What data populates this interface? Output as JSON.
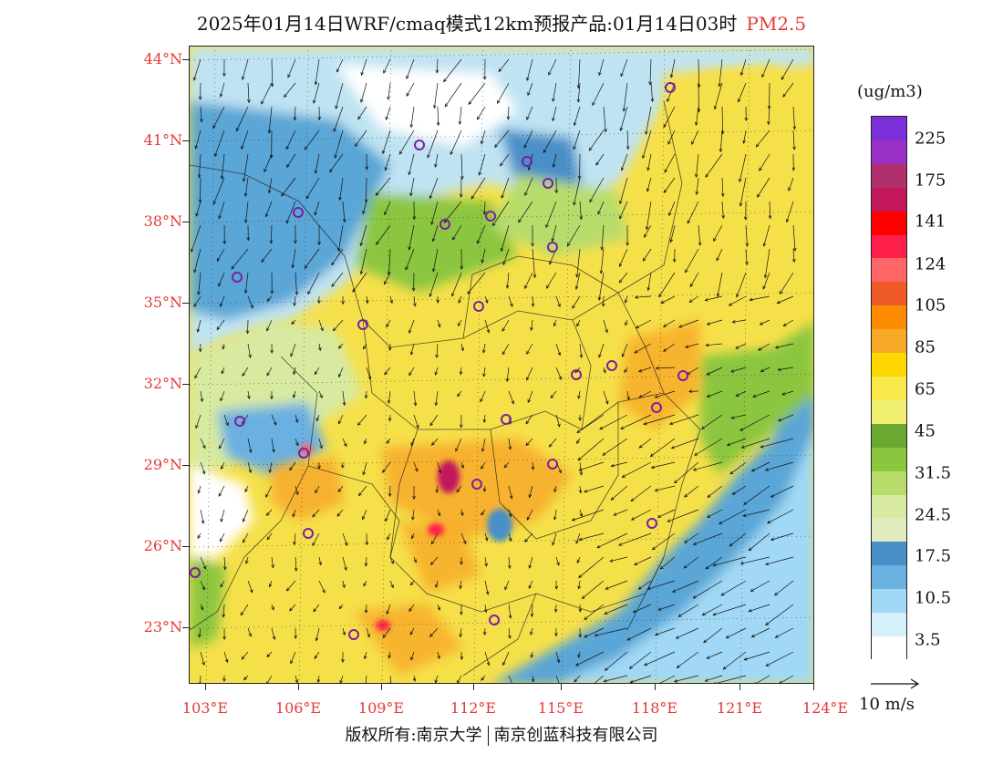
{
  "title": {
    "main": "2025年01月14日WRF/cmaq模式12km预报产品:01月14日03时",
    "pollutant": "PM2.5"
  },
  "map": {
    "lat_labels": [
      "44°N",
      "41°N",
      "38°N",
      "35°N",
      "32°N",
      "29°N",
      "26°N",
      "23°N"
    ],
    "lon_labels": [
      "103°E",
      "106°E",
      "109°E",
      "112°E",
      "115°E",
      "118°E",
      "121°E",
      "124°E"
    ],
    "colors": {
      "background_level": "#f6e04a",
      "clean_north": "#a8d8ee",
      "sea": "#5aa6d6",
      "hotspot": "#c2185b",
      "station_marker": "#7b1fa2",
      "axis_label": "#e53935"
    }
  },
  "legend": {
    "unit": "(ug/m3)",
    "labels": [
      "225",
      "175",
      "141",
      "124",
      "105",
      "85",
      "65",
      "45",
      "31.5",
      "24.5",
      "17.5",
      "10.5",
      "3.5"
    ],
    "colors": [
      "#7b2fd6",
      "#9b30c8",
      "#b0306e",
      "#c2185b",
      "#ff0000",
      "#ff1f4b",
      "#ff6666",
      "#ef5a28",
      "#ff8c00",
      "#f7a928",
      "#ffd700",
      "#f8e84c",
      "#f0f070",
      "#6aa832",
      "#8cc63f",
      "#b7dc6c",
      "#d7eaa0",
      "#e0ecc0",
      "#4a90c8",
      "#6ab0e0",
      "#a0d8f5",
      "#d6f0fb",
      "#ffffff"
    ]
  },
  "wind_reference": {
    "label": "10 m/s"
  },
  "footer": {
    "copyright_left": "版权所有:南京大学",
    "copyright_right": "南京创蓝科技有限公司"
  }
}
